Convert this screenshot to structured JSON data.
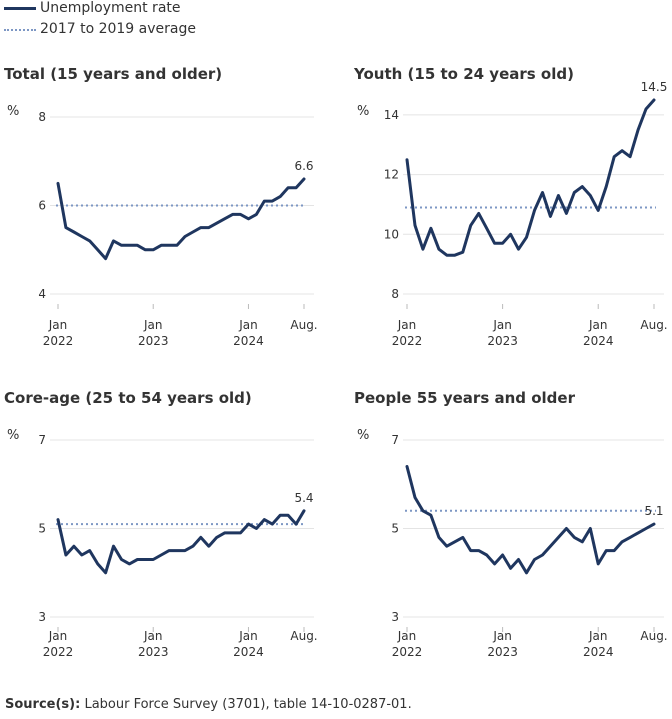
{
  "legend": {
    "series_label": "Unemployment rate",
    "average_label": "2017 to 2019 average"
  },
  "colors": {
    "series": "#1f365f",
    "average": "#7d97c4",
    "grid": "#e4e4e4",
    "axis": "#bbbbbb"
  },
  "x_ticks": [
    {
      "label": "Jan",
      "sub": "2022",
      "index": 0
    },
    {
      "label": "Jan",
      "sub": "2023",
      "index": 12
    },
    {
      "label": "Jan",
      "sub": "2024",
      "index": 24
    },
    {
      "label": "Aug.",
      "sub": "",
      "index": 31
    }
  ],
  "chart_data": [
    {
      "type": "line",
      "title": "Total (15 years and older)",
      "ylabel": "%",
      "ylim": [
        4,
        8
      ],
      "yticks": [
        4,
        6,
        8
      ],
      "average": 6.0,
      "end_label": "6.6",
      "values": [
        6.5,
        5.5,
        5.4,
        5.3,
        5.2,
        5.0,
        4.8,
        5.2,
        5.1,
        5.1,
        5.1,
        5.0,
        5.0,
        5.1,
        5.1,
        5.1,
        5.3,
        5.4,
        5.5,
        5.5,
        5.6,
        5.7,
        5.8,
        5.8,
        5.7,
        5.8,
        6.1,
        6.1,
        6.2,
        6.4,
        6.4,
        6.6
      ]
    },
    {
      "type": "line",
      "title": "Youth (15 to 24 years old)",
      "ylabel": "%",
      "ylim": [
        8,
        14.5
      ],
      "yticks": [
        8,
        10,
        12,
        14
      ],
      "average": 10.9,
      "end_label": "14.5",
      "values": [
        12.5,
        10.3,
        9.5,
        10.2,
        9.5,
        9.3,
        9.3,
        9.4,
        10.3,
        10.7,
        10.2,
        9.7,
        9.7,
        10.0,
        9.5,
        9.9,
        10.8,
        11.4,
        10.6,
        11.3,
        10.7,
        11.4,
        11.6,
        11.3,
        10.8,
        11.6,
        12.6,
        12.8,
        12.6,
        13.5,
        14.2,
        14.5
      ]
    },
    {
      "type": "line",
      "title": "Core-age (25 to 54 years old)",
      "ylabel": "%",
      "ylim": [
        3,
        7
      ],
      "yticks": [
        3,
        5,
        7
      ],
      "average": 5.1,
      "end_label": "5.4",
      "values": [
        5.2,
        4.4,
        4.6,
        4.4,
        4.5,
        4.2,
        4.0,
        4.6,
        4.3,
        4.2,
        4.3,
        4.3,
        4.3,
        4.4,
        4.5,
        4.5,
        4.5,
        4.6,
        4.8,
        4.6,
        4.8,
        4.9,
        4.9,
        4.9,
        5.1,
        5.0,
        5.2,
        5.1,
        5.3,
        5.3,
        5.1,
        5.4
      ]
    },
    {
      "type": "line",
      "title": "People 55 years and older",
      "ylabel": "%",
      "ylim": [
        3,
        7
      ],
      "yticks": [
        3,
        5,
        7
      ],
      "average": 5.4,
      "end_label": "5.1",
      "values": [
        6.4,
        5.7,
        5.4,
        5.3,
        4.8,
        4.6,
        4.7,
        4.8,
        4.5,
        4.5,
        4.4,
        4.2,
        4.4,
        4.1,
        4.3,
        4.0,
        4.3,
        4.4,
        4.6,
        4.8,
        5.0,
        4.8,
        4.7,
        5.0,
        4.2,
        4.5,
        4.5,
        4.7,
        4.8,
        4.9,
        5.0,
        5.1
      ]
    }
  ],
  "source": {
    "label": "Source(s):",
    "text": "Labour Force Survey (3701), table 14-10-0287-01."
  }
}
